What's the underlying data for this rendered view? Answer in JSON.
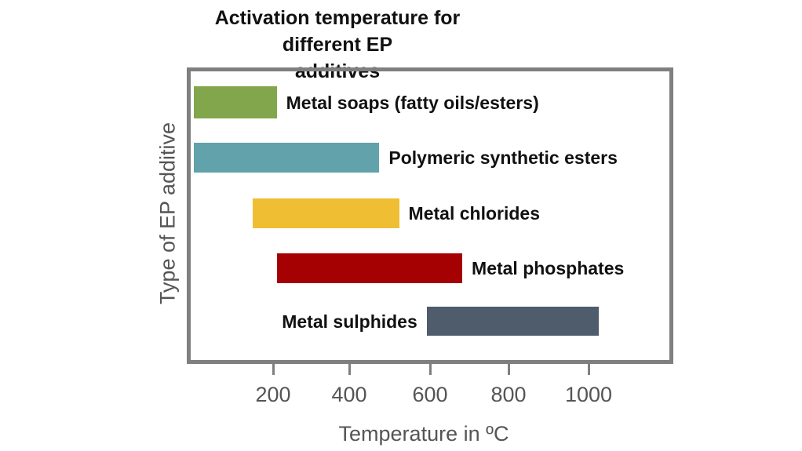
{
  "chart_data": {
    "type": "bar",
    "orientation": "horizontal-range",
    "title": "Activation temperature for different EP additives",
    "title_lines": [
      "Activation temperature for different EP",
      "additives"
    ],
    "xlabel": "Temperature in ºC",
    "ylabel": "Type of EP additive",
    "xticks": [
      "200",
      "400",
      "600",
      "800",
      "1000"
    ],
    "xlim": [
      0,
      1200
    ],
    "grid": false,
    "legend": "none (labels placed beside bars)",
    "categories": [
      "Metal soaps (fatty oils/esters)",
      "Polymeric synthetic esters",
      "Metal chlorides",
      "Metal phosphates",
      "Metal sulphides"
    ],
    "series": [
      {
        "name": "Metal soaps (fatty oils/esters)",
        "start": 0,
        "end": 210,
        "color": "#82a64b"
      },
      {
        "name": "Polymeric synthetic esters",
        "start": 0,
        "end": 470,
        "color": "#62a2aa"
      },
      {
        "name": "Metal chlorides",
        "start": 150,
        "end": 520,
        "color": "#efbe32"
      },
      {
        "name": "Metal phosphates",
        "start": 210,
        "end": 680,
        "color": "#a50002"
      },
      {
        "name": "Metal sulphides",
        "start": 590,
        "end": 1025,
        "color": "#4e5c6c"
      }
    ]
  }
}
